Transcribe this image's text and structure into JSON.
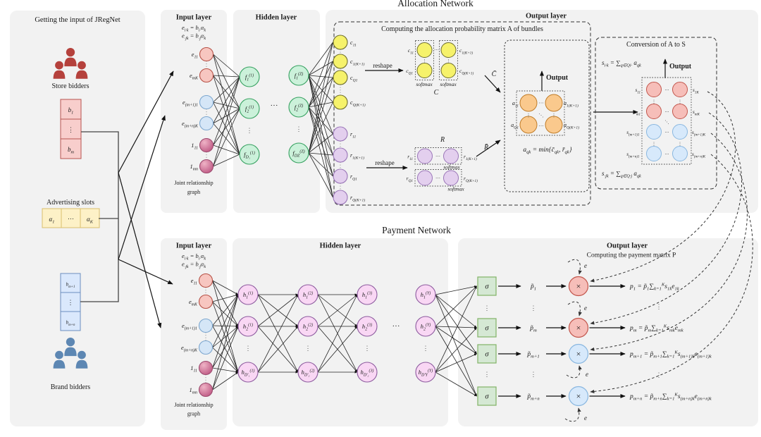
{
  "figure": {
    "allocation_title": "Allocation  Network",
    "payment_title": "Payment  Network"
  },
  "misc": {
    "vdots": "⋮",
    "hdots": "⋯",
    "ddots": "⋱",
    "cdots": "···"
  },
  "colors": {
    "panel_gray": "#f2f2f2",
    "store_red": "#b5413c",
    "brand_blue": "#5d87b3",
    "pink_node": "#f7c6c0",
    "blue_node": "#d5e6f7",
    "magenta_node": "#c05c86",
    "green_node": "#cbf1da",
    "hidden_pink_node": "#f9d7f4",
    "yellow_node": "#f6f26b",
    "lavender_node": "#e3cfee",
    "orange_node": "#fac98d",
    "s_red_node": "#f6beb9",
    "s_blue_node": "#d7e9fb",
    "sigma_green": "#d5e8d4",
    "vector_pink": "#f8cecc",
    "vector_yellow": "#fdf1c7",
    "vector_blue": "#dae8fc"
  },
  "left_panel": {
    "title": "Getting the input of JRegNet",
    "store_label": "Store bidders",
    "slots_label": "Advertising slots",
    "brand_label": "Brand bidders",
    "store_vector": [
      "b_{1}",
      "⋮",
      "b_{m}"
    ],
    "slots": [
      "α_{1}",
      "⋯",
      "α_{K}"
    ],
    "brand_vector": [
      "b_{m+1}",
      "⋮",
      "b_{m+n}"
    ]
  },
  "alloc_input": {
    "title": "Input layer",
    "formula1": "e_{i·k} = b_{i·}α_{k}",
    "formula2": "e_{·jk} = b_{·j}α_{k}",
    "nodes": [
      "e_{11}",
      "e_{mK}",
      "e_{(m+1)1}",
      "e_{(m+n)K}",
      "1_{11}",
      "1_{mn}"
    ],
    "caption_line1": "Joint relationship",
    "caption_line2": "graph"
  },
  "alloc_hidden": {
    "title": "Hidden layer",
    "col1": [
      "f_{1}^{(1)}",
      "f_{2}^{(1)}",
      "f_{D₁}^{(1)}"
    ],
    "colZ": [
      "f_{1}^{(Z)}",
      "f_{2}^{(Z)}",
      "f_{DZ}^{(Z)}"
    ]
  },
  "alloc_output": {
    "title": "Output layer",
    "computing_title": "Computing the allocation probability matrix A of bundles",
    "c_nodes": [
      "c_{11}",
      "c_{1(K+1)}",
      "c_{Q1}",
      "c_{Q(K+1)}"
    ],
    "r_nodes": [
      "r_{11}",
      "r_{1(K+1)}",
      "r_{Q1}",
      "r_{Q(K+1)}"
    ],
    "reshape_label": "reshape",
    "softmax_label": "softmax",
    "c_matrix_label": "C",
    "r_matrix_label": "R",
    "c_arrow_label": "C̄",
    "r_arrow_label": "R̄",
    "output_label": "Output",
    "a_nodes": [
      "a_{11}",
      "a_{1(K+1)}",
      "a_{Q1}",
      "a_{Q(K+1)}"
    ],
    "a_formula": "a_{qk} = min{c̄_{qk}, r̄_{qk}}",
    "conversion": {
      "title": "Conversion of A to S",
      "formula_top": "s_{i·k} = ∑_{q∈Qi·} a_{qk}",
      "formula_bottom": "s_{·jk} = ∑_{q∈Q·j} a_{qk}",
      "output_label": "Output",
      "s_left": [
        "s_{11}",
        "s_{m1}",
        "s_{(m+1)1}",
        "s_{(m+n)1}"
      ],
      "s_right": [
        "s_{1K}",
        "s_{mK}",
        "s_{(m+1)K}",
        "s_{(m+n)K}"
      ]
    }
  },
  "payment_input": {
    "title": "Input layer",
    "formula1": "e_{i·k} = b_{i·}α_{k}",
    "formula2": "e_{·jk} = b_{·j}α_{k}",
    "nodes": [
      "e_{11}",
      "e_{mK}",
      "e_{(m+1)1}",
      "e_{(m+n)K}",
      "1_{11}",
      "1_{mn}"
    ],
    "caption_line1": "Joint relationship",
    "caption_line2": "graph"
  },
  "payment_hidden": {
    "title": "Hidden layer",
    "col1": [
      "h_{1}^{(1)}",
      "h_{2}^{(1)}",
      "h_{D′₁}^{(1)}"
    ],
    "col2": [
      "h_{1}^{(2)}",
      "h_{2}^{(2)}",
      "h_{D′₂}^{(2)}"
    ],
    "col3": [
      "h_{1}^{(3)}",
      "h_{2}^{(3)}",
      "h_{D′₂}^{(3)}"
    ],
    "colY": [
      "h_{1}^{(Y)}",
      "h_{2}^{(Y)}",
      "h_{D′Y}^{(Y)}"
    ]
  },
  "payment_output": {
    "title": "Output layer",
    "subtitle": "Computing the payment matrix P",
    "sigma": "σ",
    "times": "×",
    "e_label": "e",
    "p_tilde": [
      "p̃_{1}",
      "p̃_{m}",
      "p̃_{m+1}",
      "p̃_{m+n}"
    ],
    "formulas": [
      "p_{1} = p̃_{1}∑_{k=1}^{K}s_{1k}e_{1k}",
      "p_{m} = p̃_{m}∑_{k=1}^{K}s_{mk}e_{mk}",
      "p_{m+1} = p̃_{m+1}∑_{k=1}^{K}s_{(m+1)k}e_{(m+1)k}",
      "p_{m+n} = p̃_{m+n}∑_{k=1}^{K}s_{(m+n)k}e_{(m+n)k}"
    ]
  }
}
